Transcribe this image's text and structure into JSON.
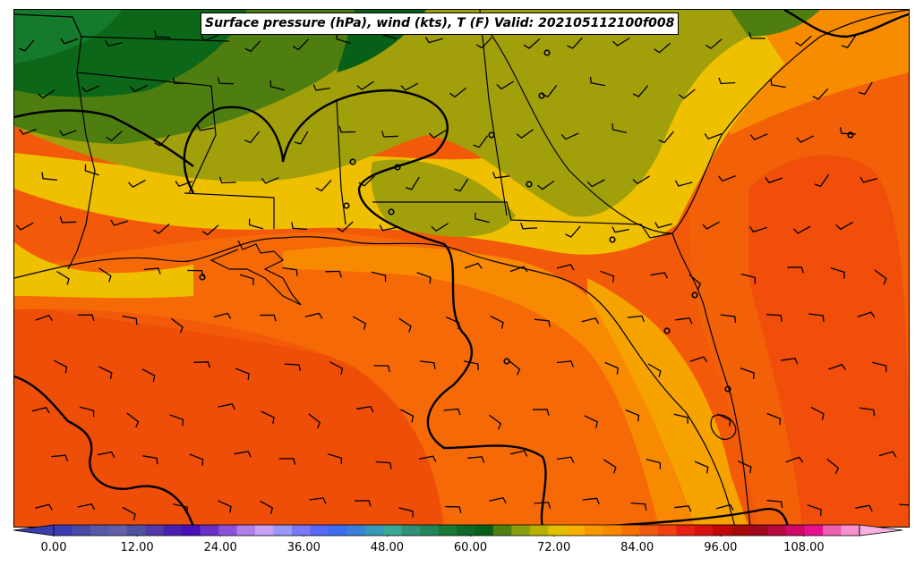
{
  "title": "Surface pressure (hPa), wind (kts), T (F) Valid: 202105112100f008",
  "colorbar": {
    "ticks": [
      "0.00",
      "12.00",
      "24.00",
      "36.00",
      "48.00",
      "60.00",
      "72.00",
      "84.00",
      "96.00",
      "108.00"
    ],
    "colors": [
      "#3b3bb0",
      "#4848a8",
      "#5858a8",
      "#6060a8",
      "#5050a0",
      "#5038a8",
      "#4a20b0",
      "#4810b8",
      "#6830c8",
      "#8c50d8",
      "#b080e8",
      "#c8a0f8",
      "#9898f8",
      "#7878f8",
      "#5868f8",
      "#3c6cf0",
      "#3880d8",
      "#3898b8",
      "#38a898",
      "#309078",
      "#208858",
      "#187838",
      "#106828",
      "#086018",
      "#508010",
      "#88a010",
      "#b8b000",
      "#e0c000",
      "#f8b000",
      "#f89800",
      "#f88800",
      "#f87000",
      "#f05810",
      "#f04010",
      "#e82010",
      "#d81010",
      "#c00808",
      "#a80808",
      "#a00820",
      "#b80840",
      "#d00868",
      "#e81090",
      "#f060b0",
      "#f890d0"
    ]
  },
  "legend": {
    "temperature_unit": "F",
    "wind_unit": "kts",
    "pressure_unit": "hPa"
  }
}
